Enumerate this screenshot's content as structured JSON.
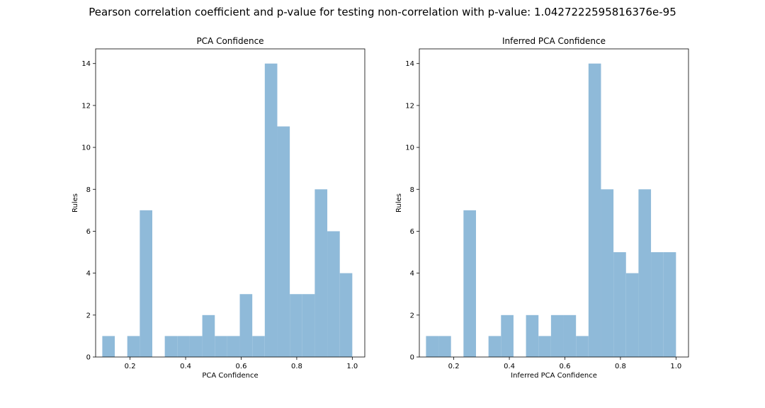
{
  "figure": {
    "suptitle": "Pearson correlation coefficient and p-value for testing non-correlation with p-value: 1.0427222595816376e-95",
    "bar_color": "#8fbad9"
  },
  "chart_data": [
    {
      "type": "bar",
      "title": "PCA Confidence",
      "xlabel": "PCA Confidence",
      "ylabel": "Rules",
      "xlim": [
        0.076,
        1.045
      ],
      "ylim": [
        0,
        14.7
      ],
      "xticks": [
        0.2,
        0.4,
        0.6,
        0.8,
        1.0
      ],
      "xtick_labels": [
        "0.2",
        "0.4",
        "0.6",
        "0.8",
        "1.0"
      ],
      "yticks": [
        0,
        2,
        4,
        6,
        8,
        10,
        12,
        14
      ],
      "ytick_labels": [
        "0",
        "2",
        "4",
        "6",
        "8",
        "10",
        "12",
        "14"
      ],
      "bin_edges": [
        0.1,
        0.145,
        0.19,
        0.235,
        0.28,
        0.325,
        0.37,
        0.415,
        0.46,
        0.505,
        0.55,
        0.595,
        0.64,
        0.685,
        0.73,
        0.775,
        0.82,
        0.865,
        0.91,
        0.955,
        1.0
      ],
      "values": [
        1,
        0,
        1,
        7,
        0,
        1,
        1,
        1,
        2,
        1,
        1,
        3,
        1,
        14,
        11,
        3,
        3,
        8,
        6,
        4
      ]
    },
    {
      "type": "bar",
      "title": "Inferred PCA Confidence",
      "xlabel": "Inferred PCA Confidence",
      "ylabel": "Rules",
      "xlim": [
        0.076,
        1.045
      ],
      "ylim": [
        0,
        14.7
      ],
      "xticks": [
        0.2,
        0.4,
        0.6,
        0.8,
        1.0
      ],
      "xtick_labels": [
        "0.2",
        "0.4",
        "0.6",
        "0.8",
        "1.0"
      ],
      "yticks": [
        0,
        2,
        4,
        6,
        8,
        10,
        12,
        14
      ],
      "ytick_labels": [
        "0",
        "2",
        "4",
        "6",
        "8",
        "10",
        "12",
        "14"
      ],
      "bin_edges": [
        0.1,
        0.145,
        0.19,
        0.235,
        0.28,
        0.325,
        0.37,
        0.415,
        0.46,
        0.505,
        0.55,
        0.595,
        0.64,
        0.685,
        0.73,
        0.775,
        0.82,
        0.865,
        0.91,
        0.955,
        1.0
      ],
      "values": [
        1,
        1,
        0,
        7,
        0,
        1,
        2,
        0,
        2,
        1,
        2,
        2,
        1,
        14,
        8,
        5,
        4,
        8,
        5,
        5
      ]
    }
  ]
}
